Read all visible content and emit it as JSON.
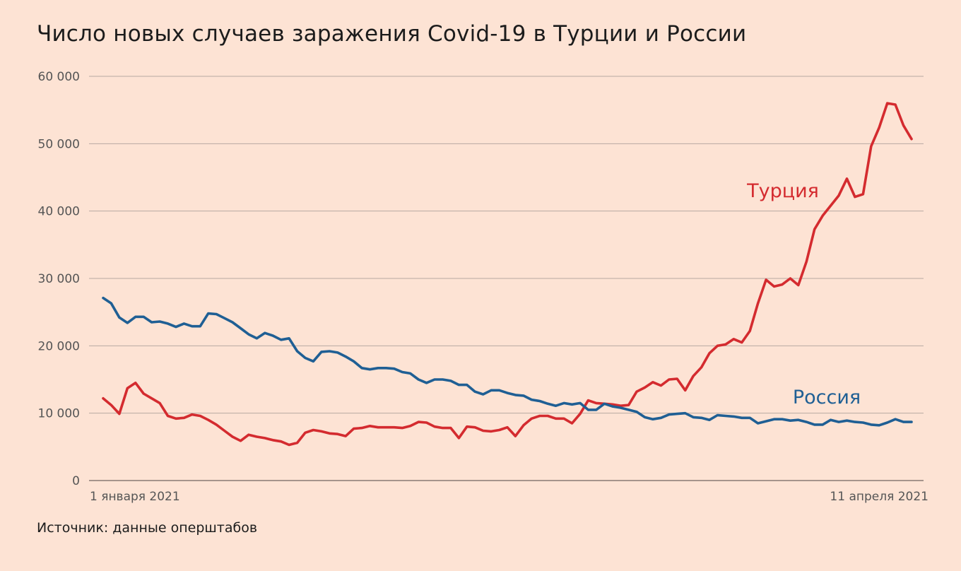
{
  "title": "Число новых случаев заражения Covid-19 в Турции и России",
  "source": "Источник: данные оперштабов",
  "chart_data": {
    "type": "line",
    "title": "Число новых случаев заражения Covid-19 в Турции и России",
    "xlabel": "",
    "ylabel": "",
    "x_tick_labels": [
      "1 января 2021",
      "11 апреля 2021"
    ],
    "x_start": "2021-01-01",
    "x_end": "2021-04-11",
    "ylim": [
      0,
      60000
    ],
    "y_ticks": [
      0,
      10000,
      20000,
      30000,
      40000,
      50000,
      60000
    ],
    "y_tick_labels": [
      "0",
      "10 000",
      "20 000",
      "30 000",
      "40 000",
      "50 000",
      "60 000"
    ],
    "grid": true,
    "legend": "direct labels",
    "series": [
      {
        "name": "Турция",
        "color": "#d42b2f",
        "values": [
          12200,
          11200,
          9900,
          13700,
          14500,
          12900,
          12200,
          11500,
          9600,
          9200,
          9300,
          9800,
          9600,
          9000,
          8300,
          7400,
          6500,
          5900,
          6800,
          6500,
          6300,
          6000,
          5800,
          5300,
          5600,
          7100,
          7500,
          7300,
          7000,
          6900,
          6600,
          7700,
          7800,
          8100,
          7900,
          7900,
          7900,
          7800,
          8100,
          8700,
          8600,
          8000,
          7800,
          7800,
          6300,
          8000,
          7900,
          7400,
          7300,
          7500,
          7900,
          6600,
          8200,
          9200,
          9600,
          9600,
          9200,
          9200,
          8500,
          9900,
          11900,
          11500,
          11400,
          11300,
          11100,
          11200,
          13200,
          13800,
          14600,
          14100,
          15000,
          15100,
          13400,
          15500,
          16800,
          18900,
          20000,
          20200,
          21000,
          20500,
          22200,
          26300,
          29800,
          28800,
          29100,
          30000,
          29000,
          32500,
          37300,
          39300,
          40800,
          42300,
          44800,
          42100,
          42500,
          49600,
          52400,
          56000,
          55800,
          52700,
          50700
        ]
      },
      {
        "name": "Россия",
        "color": "#1f5f94",
        "values": [
          27100,
          26300,
          24200,
          23400,
          24300,
          24300,
          23500,
          23600,
          23300,
          22800,
          23300,
          22900,
          22900,
          24800,
          24700,
          24100,
          23500,
          22600,
          21700,
          21100,
          21900,
          21500,
          20900,
          21100,
          19200,
          18200,
          17700,
          19100,
          19200,
          19000,
          18400,
          17700,
          16700,
          16500,
          16700,
          16700,
          16600,
          16100,
          15900,
          15000,
          14500,
          15000,
          15000,
          14800,
          14200,
          14200,
          13200,
          12800,
          13400,
          13400,
          13000,
          12700,
          12600,
          12000,
          11800,
          11400,
          11100,
          11500,
          11300,
          11500,
          10500,
          10500,
          11400,
          11000,
          10800,
          10500,
          10200,
          9400,
          9100,
          9300,
          9800,
          9900,
          10000,
          9400,
          9300,
          9000,
          9700,
          9600,
          9500,
          9300,
          9300,
          8500,
          8800,
          9100,
          9100,
          8900,
          9000,
          8700,
          8300,
          8300,
          9000,
          8700,
          8900,
          8700,
          8600,
          8300,
          8200,
          8600,
          9100,
          8700,
          8700
        ]
      }
    ]
  }
}
